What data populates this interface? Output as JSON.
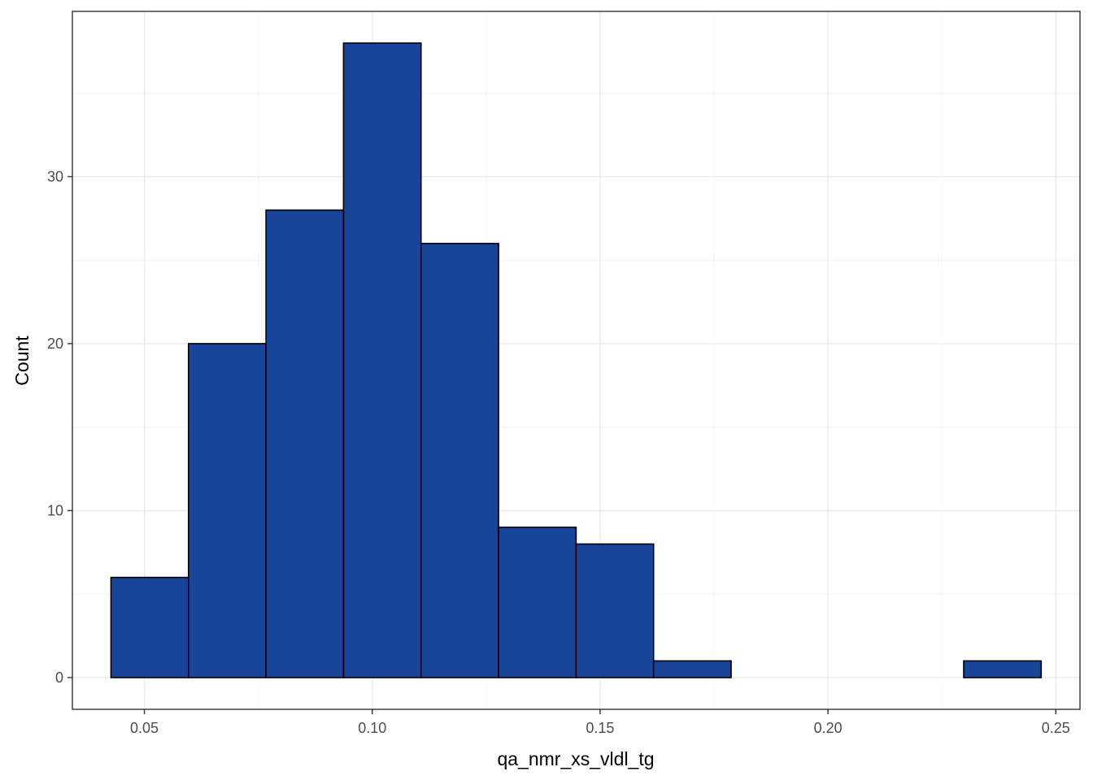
{
  "chart_data": {
    "type": "bar",
    "subtype": "histogram",
    "title": "",
    "xlabel": "qa_nmr_xs_vldl_tg",
    "ylabel": "Count",
    "bin_width": 0.01701,
    "bins": [
      {
        "x0": 0.04267,
        "x1": 0.05968,
        "count": 6
      },
      {
        "x0": 0.05968,
        "x1": 0.07669,
        "count": 20
      },
      {
        "x0": 0.07669,
        "x1": 0.0937,
        "count": 28
      },
      {
        "x0": 0.0937,
        "x1": 0.11071,
        "count": 38
      },
      {
        "x0": 0.11071,
        "x1": 0.12772,
        "count": 26
      },
      {
        "x0": 0.12772,
        "x1": 0.14473,
        "count": 9
      },
      {
        "x0": 0.14473,
        "x1": 0.16174,
        "count": 8
      },
      {
        "x0": 0.16174,
        "x1": 0.17875,
        "count": 1
      },
      {
        "x0": 0.17875,
        "x1": 0.19576,
        "count": 0
      },
      {
        "x0": 0.19576,
        "x1": 0.21277,
        "count": 0
      },
      {
        "x0": 0.21277,
        "x1": 0.22978,
        "count": 0
      },
      {
        "x0": 0.22978,
        "x1": 0.24679,
        "count": 1
      }
    ],
    "xlim": [
      0.0342,
      0.2553
    ],
    "ylim": [
      -1.9,
      39.9
    ],
    "x_ticks": [
      {
        "value": 0.05,
        "label": "0.05"
      },
      {
        "value": 0.1,
        "label": "0.10"
      },
      {
        "value": 0.15,
        "label": "0.15"
      },
      {
        "value": 0.2,
        "label": "0.20"
      },
      {
        "value": 0.25,
        "label": "0.25"
      }
    ],
    "y_ticks": [
      {
        "value": 0,
        "label": "0"
      },
      {
        "value": 10,
        "label": "10"
      },
      {
        "value": 20,
        "label": "20"
      },
      {
        "value": 30,
        "label": "30"
      }
    ],
    "x_minor": [
      0.075,
      0.125,
      0.175,
      0.225
    ],
    "y_minor": [
      5,
      15,
      25,
      35
    ],
    "grid": true,
    "legend": "none",
    "colors": {
      "bar_fill": "#18449A",
      "bar_stroke": "#000000",
      "grid_major": "#EBEBEB",
      "grid_minor": "#F5F5F5",
      "panel_border": "#333333"
    }
  }
}
